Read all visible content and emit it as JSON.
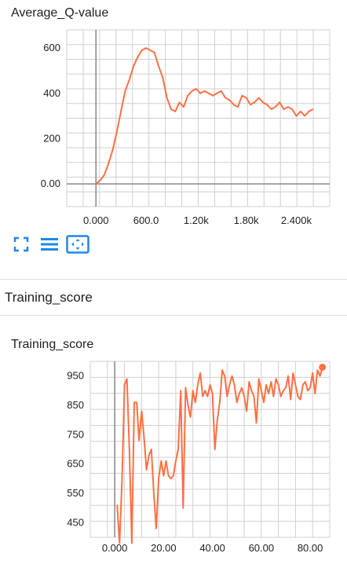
{
  "card1": {
    "title": "Average_Q-value",
    "tools": [
      {
        "name": "fit-screen-icon"
      },
      {
        "name": "list-icon"
      },
      {
        "name": "pan-zoom-icon"
      }
    ]
  },
  "section": {
    "title": "Training_score"
  },
  "card2": {
    "title": "Training_score"
  },
  "colors": {
    "line": "#ff7043",
    "grid": "#d0d0d0",
    "axis": "#888888",
    "accent": "#1e88e5"
  },
  "chart_data": [
    {
      "type": "line",
      "title": "Average_Q-value",
      "xlim": [
        -350,
        2800
      ],
      "ylim": [
        -100,
        680
      ],
      "x_ticks": [
        0,
        600,
        1200,
        1800,
        2400
      ],
      "x_tick_labels": [
        "0.000",
        "600.0",
        "1.20k",
        "1.80k",
        "2.400k"
      ],
      "y_ticks": [
        0,
        200,
        400,
        600
      ],
      "y_tick_labels": [
        "0.00",
        "200",
        "400",
        "600"
      ],
      "grid": true,
      "series": [
        {
          "x": [
            0,
            50,
            100,
            150,
            200,
            250,
            300,
            350,
            400,
            450,
            500,
            550,
            600,
            650,
            700,
            750,
            800,
            850,
            900,
            950,
            1000,
            1050,
            1100,
            1150,
            1200,
            1250,
            1300,
            1350,
            1400,
            1450,
            1500,
            1550,
            1600,
            1650,
            1700,
            1750,
            1800,
            1850,
            1900,
            1950,
            2000,
            2050,
            2100,
            2150,
            2200,
            2250,
            2300,
            2350,
            2400,
            2450,
            2500,
            2550,
            2600
          ],
          "y": [
            0,
            15,
            40,
            90,
            150,
            230,
            320,
            410,
            460,
            520,
            560,
            590,
            600,
            590,
            580,
            520,
            470,
            380,
            330,
            320,
            360,
            340,
            390,
            410,
            420,
            400,
            410,
            400,
            390,
            400,
            410,
            380,
            370,
            350,
            340,
            390,
            380,
            350,
            360,
            380,
            360,
            350,
            330,
            340,
            360,
            330,
            340,
            330,
            300,
            320,
            300,
            320,
            330
          ]
        }
      ]
    },
    {
      "type": "line",
      "title": "Training_score",
      "xlim": [
        -10,
        88
      ],
      "ylim": [
        400,
        1000
      ],
      "x_ticks": [
        0,
        20,
        40,
        60,
        80
      ],
      "x_tick_labels": [
        "0.000",
        "20.00",
        "40.00",
        "60.00",
        "80.00"
      ],
      "y_ticks": [
        450,
        550,
        650,
        750,
        850,
        950
      ],
      "y_tick_labels": [
        "450",
        "550",
        "650",
        "750",
        "850",
        "950"
      ],
      "grid": true,
      "series": [
        {
          "x": [
            1,
            2,
            3,
            4,
            5,
            6,
            7,
            8,
            9,
            10,
            11,
            12,
            13,
            14,
            15,
            16,
            17,
            18,
            19,
            20,
            21,
            22,
            23,
            24,
            25,
            26,
            27,
            28,
            29,
            30,
            31,
            32,
            33,
            34,
            35,
            36,
            37,
            38,
            39,
            40,
            41,
            42,
            43,
            44,
            45,
            46,
            47,
            48,
            49,
            50,
            51,
            52,
            53,
            54,
            55,
            56,
            57,
            58,
            59,
            60,
            61,
            62,
            63,
            64,
            65,
            66,
            67,
            68,
            69,
            70,
            71,
            72,
            73,
            74,
            75,
            76,
            77,
            78,
            79,
            80,
            81,
            82,
            83,
            84,
            85
          ],
          "y": [
            510,
            380,
            600,
            920,
            940,
            700,
            380,
            860,
            860,
            730,
            830,
            740,
            630,
            680,
            700,
            550,
            430,
            600,
            660,
            610,
            660,
            610,
            600,
            610,
            660,
            700,
            900,
            500,
            910,
            850,
            810,
            900,
            860,
            920,
            960,
            880,
            900,
            880,
            920,
            890,
            700,
            800,
            860,
            970,
            950,
            880,
            920,
            950,
            920,
            860,
            890,
            910,
            880,
            830,
            930,
            900,
            880,
            790,
            940,
            900,
            860,
            920,
            890,
            930,
            880,
            940,
            920,
            880,
            900,
            910,
            950,
            870,
            960,
            920,
            880,
            870,
            920,
            930,
            900,
            910,
            960,
            890,
            970,
            950,
            980
          ]
        }
      ]
    }
  ]
}
